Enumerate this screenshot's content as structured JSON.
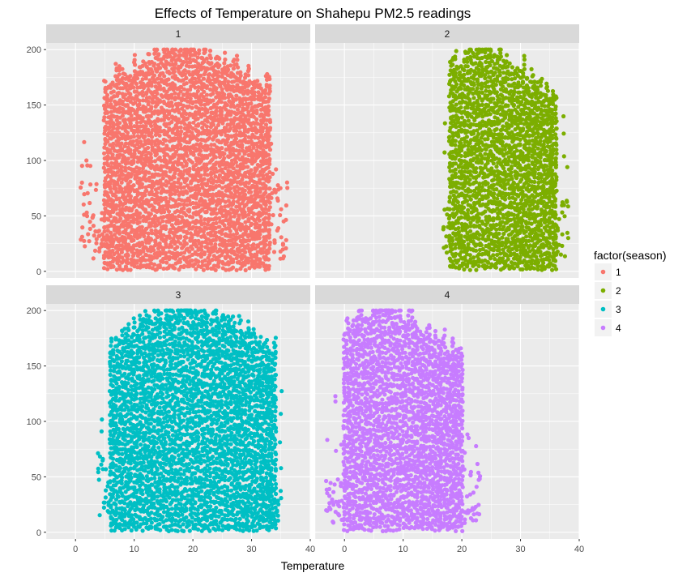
{
  "chart_data": {
    "type": "scatter",
    "title": "Effects of Temperature on Shahepu PM2.5 readings",
    "xlabel": "Temperature",
    "ylabel": "",
    "xlim": [
      -5,
      40
    ],
    "ylim": [
      -6,
      206
    ],
    "x_ticks": [
      "0",
      "10",
      "20",
      "30",
      "40"
    ],
    "y_ticks": [
      "0",
      "50",
      "100",
      "150",
      "200"
    ],
    "facet_by": "season",
    "facets": [
      {
        "label": "1",
        "color": "#F8766D",
        "temp_range": [
          1,
          36
        ],
        "dense_range": [
          5,
          33
        ],
        "peak_temp": 18
      },
      {
        "label": "2",
        "color": "#7CAE00",
        "temp_range": [
          17,
          38
        ],
        "dense_range": [
          18,
          36
        ],
        "peak_temp": 24
      },
      {
        "label": "3",
        "color": "#00BFC4",
        "temp_range": [
          4,
          35
        ],
        "dense_range": [
          6,
          34
        ],
        "peak_temp": 19
      },
      {
        "label": "4",
        "color": "#C77CFF",
        "temp_range": [
          -3,
          23
        ],
        "dense_range": [
          0,
          20
        ],
        "peak_temp": 7
      }
    ],
    "legend": {
      "title": "factor(season)",
      "position": "right",
      "entries": [
        {
          "label": "1",
          "color": "#F8766D"
        },
        {
          "label": "2",
          "color": "#7CAE00"
        },
        {
          "label": "3",
          "color": "#00BFC4"
        },
        {
          "label": "4",
          "color": "#C77CFF"
        }
      ]
    },
    "grid": true,
    "panel_background": "#EBEBEB",
    "strip_background": "#D9D9D9"
  }
}
